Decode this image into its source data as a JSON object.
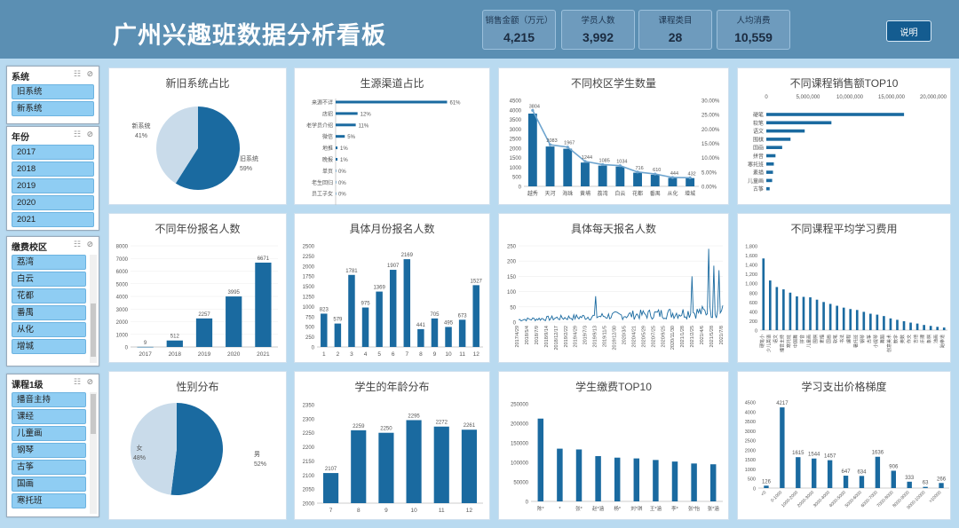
{
  "title": "广州兴趣班数据分析看板",
  "kpis": [
    {
      "label": "销售金额（万元）",
      "value": "4,215"
    },
    {
      "label": "学员人数",
      "value": "3,992"
    },
    {
      "label": "课程类目",
      "value": "28"
    },
    {
      "label": "人均消费",
      "value": "10,559"
    }
  ],
  "help_label": "说明",
  "slicers": {
    "system": {
      "title": "系统",
      "items": [
        "旧系统",
        "新系统"
      ]
    },
    "year": {
      "title": "年份",
      "items": [
        "2017",
        "2018",
        "2019",
        "2020",
        "2021"
      ]
    },
    "campus": {
      "title": "缴费校区",
      "items": [
        "荔湾",
        "白云",
        "花都",
        "番禺",
        "从化",
        "增城"
      ]
    },
    "course": {
      "title": "课程1级",
      "items": [
        "播音主持",
        "课经",
        "儿童画",
        "钢琴",
        "古筝",
        "国画",
        "寒托班"
      ]
    }
  },
  "colors": {
    "primary": "#1a6aa0",
    "light": "#c9dbea"
  },
  "chart_data": [
    {
      "id": "system_share",
      "type": "pie",
      "title": "新旧系统占比",
      "labels": [
        "旧系统",
        "新系统"
      ],
      "values": [
        59,
        41
      ],
      "value_labels": [
        "59%",
        "41%"
      ]
    },
    {
      "id": "source_share",
      "type": "bar",
      "orientation": "horizontal",
      "title": "生源渠道占比",
      "categories": [
        "来源不详",
        "店招",
        "老学员介绍",
        "微信",
        "地推",
        "晚报",
        "单页",
        "老生回归",
        "员工子女"
      ],
      "values": [
        61,
        12,
        11,
        5,
        1,
        1,
        0,
        0,
        0
      ],
      "value_labels": [
        "61%",
        "12%",
        "11%",
        "5%",
        "1%",
        "1%",
        "0%",
        "0%",
        "0%"
      ],
      "xlim": [
        0,
        70
      ]
    },
    {
      "id": "campus_students",
      "type": "bar",
      "title": "不同校区学生数量",
      "categories": [
        "越秀",
        "天河",
        "海珠",
        "黄埔",
        "荔湾",
        "白云",
        "花都",
        "番禺",
        "从化",
        "增城"
      ],
      "values": [
        3804,
        2083,
        1967,
        1244,
        1085,
        1034,
        716,
        610,
        444,
        432
      ],
      "value_labels": [
        "3804",
        "2083",
        "1967",
        "1244",
        "1085",
        "1034",
        "716",
        "610",
        "444",
        "432"
      ],
      "ylim": [
        0,
        4500
      ],
      "y_ticks": [
        "0",
        "500",
        "1000",
        "1500",
        "2000",
        "2500",
        "3000",
        "3500",
        "4000",
        "4500"
      ],
      "secondary": {
        "type": "line",
        "values": [
          26.5,
          14.5,
          13.7,
          8.7,
          7.6,
          7.2,
          5.0,
          4.3,
          3.1,
          3.0
        ],
        "ylim": [
          0,
          30
        ],
        "y_ticks": [
          "0.00%",
          "5.00%",
          "10.00%",
          "15.00%",
          "20.00%",
          "25.00%",
          "30.00%"
        ]
      }
    },
    {
      "id": "course_sales_top10",
      "type": "bar",
      "orientation": "horizontal",
      "title": "不同课程销售额TOP10",
      "categories": [
        "硬笔",
        "软笔",
        "语文",
        "围棋",
        "国画",
        "拼音",
        "寒托班",
        "素描",
        "儿童画",
        "古筝"
      ],
      "values": [
        16500000,
        7800000,
        4600000,
        2900000,
        1900000,
        1100000,
        900000,
        800000,
        700000,
        400000
      ],
      "xlim": [
        0,
        20000000
      ],
      "x_ticks": [
        "0",
        "5,000,000",
        "10,000,000",
        "15,000,000",
        "20,000,000"
      ]
    },
    {
      "id": "yearly_enrollment",
      "type": "bar",
      "title": "不同年份报名人数",
      "categories": [
        "2017",
        "2018",
        "2019",
        "2020",
        "2021"
      ],
      "values": [
        9,
        512,
        2257,
        3995,
        6671
      ],
      "value_labels": [
        "9",
        "512",
        "2257",
        "3995",
        "6671"
      ],
      "ylim": [
        0,
        8000
      ],
      "y_ticks": [
        "0",
        "1000",
        "2000",
        "3000",
        "4000",
        "5000",
        "6000",
        "7000",
        "8000"
      ]
    },
    {
      "id": "monthly_enrollment",
      "type": "bar",
      "title": "具体月份报名人数",
      "categories": [
        "1",
        "2",
        "3",
        "4",
        "5",
        "6",
        "7",
        "8",
        "9",
        "10",
        "11",
        "12"
      ],
      "values": [
        823,
        579,
        1781,
        975,
        1369,
        1907,
        2169,
        441,
        705,
        495,
        673,
        1527
      ],
      "value_labels": [
        "823",
        "579",
        "1781",
        "975",
        "1369",
        "1907",
        "2169",
        "441",
        "705",
        "495",
        "673",
        "1527"
      ],
      "ylim": [
        0,
        2500
      ],
      "y_ticks": [
        "0",
        "250",
        "500",
        "750",
        "1000",
        "1250",
        "1500",
        "1750",
        "2000",
        "2250",
        "2500"
      ]
    },
    {
      "id": "daily_enrollment",
      "type": "line",
      "title": "具体每天报名人数",
      "ylim": [
        0,
        250
      ],
      "y_ticks": [
        "0",
        "50",
        "100",
        "150",
        "200",
        "250"
      ],
      "x_tick_labels": [
        "2017/4/29",
        "2018/5/4",
        "2018/7/9",
        "2018/9/14",
        "2018/12/17",
        "2019/2/22",
        "2019/4/29",
        "2019/7/3",
        "2019/9/13",
        "2019/11/5",
        "2019/12/30",
        "2020/3/5",
        "2020/4/21",
        "2020/5/29",
        "2020/7/25",
        "2020/9/25",
        "2020/11/30",
        "2021/1/28",
        "2021/2/25",
        "2021/4/6",
        "2021/5/28",
        "2021/7/8"
      ]
    },
    {
      "id": "course_avg_fee",
      "type": "bar",
      "title": "不同课程平均学习费用",
      "ylim": [
        0,
        1800
      ],
      "y_ticks": [
        "0",
        "200",
        "400",
        "600",
        "800",
        "1,000",
        "1,200",
        "1,400",
        "1,600",
        "1,800"
      ],
      "categories": [
        "硬笔小",
        "少儿英语",
        "语文",
        "播音主持",
        "寒托班",
        "中国舞",
        "拼音",
        "儿童画",
        "围棋",
        "素描",
        "国画",
        "软笔",
        "书法",
        "编程",
        "暑托班",
        "钢琴",
        "古筝",
        "小提琴",
        "舞蹈",
        "创意美术",
        "数学",
        "奥数",
        "作文",
        "吉他",
        "乐理",
        "象棋",
        "油画",
        "跆拳道"
      ],
      "values": [
        1530,
        1060,
        920,
        870,
        800,
        720,
        710,
        700,
        650,
        600,
        560,
        520,
        480,
        450,
        430,
        390,
        350,
        330,
        300,
        250,
        220,
        190,
        160,
        140,
        110,
        90,
        70,
        55
      ]
    },
    {
      "id": "gender_share",
      "type": "pie",
      "title": "性别分布",
      "labels": [
        "男",
        "女"
      ],
      "values": [
        52,
        48
      ],
      "value_labels": [
        "52%",
        "48%"
      ]
    },
    {
      "id": "grade_distribution",
      "type": "bar",
      "title": "学生的年龄分布",
      "categories": [
        "7",
        "8",
        "9",
        "10",
        "11",
        "12"
      ],
      "values": [
        2107,
        2259,
        2250,
        2295,
        2272,
        2261
      ],
      "value_labels": [
        "2107",
        "2259",
        "2250",
        "2295",
        "2272",
        "2261"
      ],
      "ylim": [
        2000,
        2350
      ],
      "y_ticks": [
        "2000",
        "2050",
        "2100",
        "2150",
        "2200",
        "2250",
        "2300",
        "2350"
      ]
    },
    {
      "id": "student_payment_top10",
      "type": "bar",
      "title": "学生缴费TOP10",
      "categories": [
        "陈*",
        "*",
        "张*",
        "赵*涵",
        "杨*",
        "刘*琪",
        "王*涵",
        "李*",
        "张*怡",
        "张*涵"
      ],
      "values": [
        212000,
        135000,
        133000,
        116000,
        112000,
        110000,
        106000,
        102000,
        97000,
        95000
      ],
      "ylim": [
        0,
        250000
      ],
      "y_ticks": [
        "0",
        "50000",
        "100000",
        "150000",
        "200000",
        "250000"
      ]
    },
    {
      "id": "price_gradient",
      "type": "bar",
      "title": "学习支出价格梯度",
      "categories": [
        "<0",
        "0-1000",
        "1000-2000",
        "2000-3000",
        "3000-4000",
        "4000-5000",
        "5000-6000",
        "6000-7000",
        "7000-8000",
        "8000-9000",
        "9000-10000",
        ">10000"
      ],
      "values": [
        126,
        4217,
        1615,
        1544,
        1457,
        647,
        634,
        1636,
        906,
        333,
        63,
        266
      ],
      "value_labels": [
        "126",
        "4217",
        "1615",
        "1544",
        "1457",
        "647",
        "634",
        "1636",
        "906",
        "333",
        "63",
        "266"
      ],
      "ylim": [
        0,
        4500
      ],
      "y_ticks": [
        "0",
        "500",
        "1000",
        "1500",
        "2000",
        "2500",
        "3000",
        "3500",
        "4000",
        "4500"
      ]
    }
  ]
}
